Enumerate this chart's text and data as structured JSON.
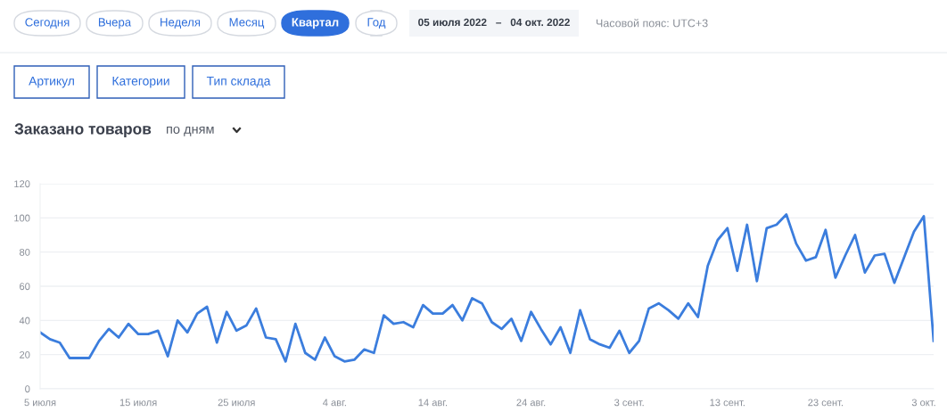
{
  "chart_data": {
    "type": "line",
    "title": "Заказано товаров",
    "subtitle": "по дням",
    "annotations": [
      "Сегодня",
      "Вчера",
      "Неделя",
      "Месяц",
      "Квартал",
      "Год",
      "05 июля 2022   –   04 окт. 2022",
      "Часовой пояс: UTC+3",
      "Артикул",
      "Категории",
      "Тип склада"
    ],
    "x": [
      "2022-07-05",
      "2022-07-06",
      "2022-07-07",
      "2022-07-08",
      "2022-07-09",
      "2022-07-10",
      "2022-07-11",
      "2022-07-12",
      "2022-07-13",
      "2022-07-14",
      "2022-07-15",
      "2022-07-16",
      "2022-07-17",
      "2022-07-18",
      "2022-07-19",
      "2022-07-20",
      "2022-07-21",
      "2022-07-22",
      "2022-07-23",
      "2022-07-24",
      "2022-07-25",
      "2022-07-26",
      "2022-07-27",
      "2022-07-28",
      "2022-07-29",
      "2022-07-30",
      "2022-07-31",
      "2022-08-01",
      "2022-08-02",
      "2022-08-03",
      "2022-08-04",
      "2022-08-05",
      "2022-08-06",
      "2022-08-07",
      "2022-08-08",
      "2022-08-09",
      "2022-08-10",
      "2022-08-11",
      "2022-08-12",
      "2022-08-13",
      "2022-08-14",
      "2022-08-15",
      "2022-08-16",
      "2022-08-17",
      "2022-08-18",
      "2022-08-19",
      "2022-08-20",
      "2022-08-21",
      "2022-08-22",
      "2022-08-23",
      "2022-08-24",
      "2022-08-25",
      "2022-08-26",
      "2022-08-27",
      "2022-08-28",
      "2022-08-29",
      "2022-08-30",
      "2022-08-31",
      "2022-09-01",
      "2022-09-02",
      "2022-09-03",
      "2022-09-04",
      "2022-09-05",
      "2022-09-06",
      "2022-09-07",
      "2022-09-08",
      "2022-09-09",
      "2022-09-10",
      "2022-09-11",
      "2022-09-12",
      "2022-09-13",
      "2022-09-14",
      "2022-09-15",
      "2022-09-16",
      "2022-09-17",
      "2022-09-18",
      "2022-09-19",
      "2022-09-20",
      "2022-09-21",
      "2022-09-22",
      "2022-09-23",
      "2022-09-24",
      "2022-09-25",
      "2022-09-26",
      "2022-09-27",
      "2022-09-28",
      "2022-09-29",
      "2022-09-30",
      "2022-10-01",
      "2022-10-02",
      "2022-10-03",
      "2022-10-04"
    ],
    "series": [
      {
        "color": "#3b7ddd",
        "values": [
          33,
          29,
          27,
          18,
          18,
          18,
          28,
          35,
          30,
          38,
          32,
          32,
          34,
          19,
          40,
          33,
          44,
          48,
          27,
          45,
          34,
          37,
          47,
          30,
          29,
          16,
          38,
          21,
          17,
          30,
          19,
          16,
          17,
          23,
          21,
          43,
          38,
          39,
          36,
          49,
          44,
          44,
          49,
          40,
          53,
          50,
          39,
          35,
          41,
          28,
          45,
          35,
          26,
          36,
          21,
          46,
          29,
          26,
          24,
          34,
          21,
          28,
          47,
          50,
          46,
          41,
          50,
          42,
          72,
          87,
          94,
          69,
          96,
          63,
          94,
          96,
          102,
          85,
          75,
          77,
          93,
          65,
          78,
          90,
          68,
          78,
          79,
          62,
          77,
          92,
          101,
          28
        ]
      }
    ],
    "xlim": [
      "2022-07-05",
      "2022-10-04"
    ],
    "xticks": [
      {
        "value": "2022-07-05",
        "label": "5 июля"
      },
      {
        "value": "2022-07-15",
        "label": "15 июля"
      },
      {
        "value": "2022-07-25",
        "label": "25 июля"
      },
      {
        "value": "2022-08-04",
        "label": "4 авг."
      },
      {
        "value": "2022-08-14",
        "label": "14 авг."
      },
      {
        "value": "2022-08-24",
        "label": "24 авг."
      },
      {
        "value": "2022-09-03",
        "label": "3 сент."
      },
      {
        "value": "2022-09-13",
        "label": "13 сент."
      },
      {
        "value": "2022-09-23",
        "label": "23 сент."
      },
      {
        "value": "2022-10-03",
        "label": "3 окт."
      }
    ],
    "ylim": [
      0,
      120
    ],
    "yticks": [
      0,
      20,
      40,
      60,
      80,
      100,
      120
    ],
    "grid": "y",
    "marker": "none",
    "line_style": "solid",
    "legend": false
  }
}
